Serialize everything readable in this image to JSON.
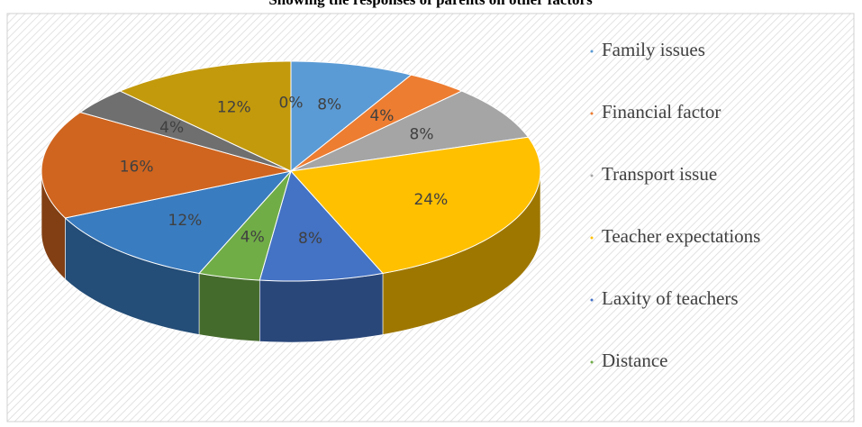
{
  "chart_data": {
    "type": "pie3d",
    "title": "Showing the responses of parents on other factors",
    "categories": [
      "Family issues",
      "Financial factor",
      "Transport issue",
      "Teacher expectations",
      "Laxity of teachers",
      "Distance",
      null,
      null,
      null,
      null,
      null
    ],
    "values": [
      8,
      4,
      8,
      24,
      8,
      4,
      12,
      16,
      4,
      12,
      0
    ],
    "value_labels": [
      "8%",
      "4%",
      "8%",
      "24%",
      "8%",
      "4%",
      "12%",
      "16%",
      "4%",
      "12%",
      "0%"
    ],
    "colors": [
      "#5b9bd5",
      "#ed7d31",
      "#a5a5a5",
      "#ffc000",
      "#4472c4",
      "#70ad47",
      "#3a7cc0",
      "#d0651f",
      "#6f6f6f",
      "#c39a0c",
      "#5b9bd5"
    ],
    "legend": "right"
  }
}
